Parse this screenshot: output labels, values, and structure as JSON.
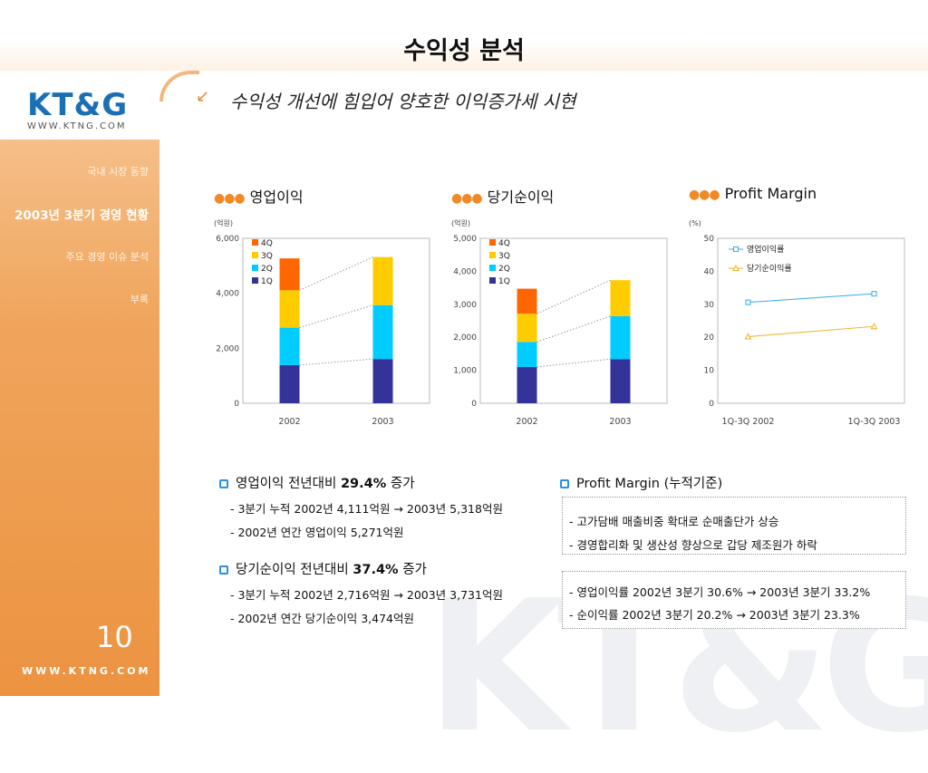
{
  "page": {
    "title": "수익성 분석",
    "subtitle": "수익성 개선에 힘입어 양호한 이익증가세 시현",
    "page_number": "10"
  },
  "brand": {
    "logo": "KT&G",
    "url": "WWW.KTNG.COM",
    "bottom_url": "WWW.KTNG.COM",
    "accent": "#f08a25"
  },
  "nav": {
    "items": [
      "국내 시장 동향",
      "2003년 3분기 경영 현황",
      "주요 경영 이슈 분석",
      "부록"
    ],
    "active_index": 1
  },
  "chart_headers": [
    "영업이익",
    "당기순이익",
    "Profit Margin"
  ],
  "chart_data": [
    {
      "type": "bar",
      "stacked": true,
      "title": "영업이익",
      "unit": "(억원)",
      "categories": [
        "2002",
        "2003"
      ],
      "series": [
        {
          "name": "1Q",
          "values": [
            1390,
            1610
          ],
          "color": "#333399"
        },
        {
          "name": "2Q",
          "values": [
            1360,
            1960
          ],
          "color": "#00ccff"
        },
        {
          "name": "3Q",
          "values": [
            1361,
            1748
          ],
          "color": "#ffcc00"
        },
        {
          "name": "4Q",
          "values": [
            1160,
            0
          ],
          "color": "#ff6600"
        }
      ],
      "ylim": [
        0,
        6000
      ],
      "yticks": [
        "0",
        "2,000",
        "4,000",
        "6,000"
      ],
      "ytick_values": [
        0,
        2000,
        4000,
        6000
      ]
    },
    {
      "type": "bar",
      "stacked": true,
      "title": "당기순이익",
      "unit": "(억원)",
      "categories": [
        "2002",
        "2003"
      ],
      "series": [
        {
          "name": "1Q",
          "values": [
            1100,
            1340
          ],
          "color": "#333399"
        },
        {
          "name": "2Q",
          "values": [
            760,
            1300
          ],
          "color": "#00ccff"
        },
        {
          "name": "3Q",
          "values": [
            856,
            1091
          ],
          "color": "#ffcc00"
        },
        {
          "name": "4Q",
          "values": [
            758,
            0
          ],
          "color": "#ff6600"
        }
      ],
      "ylim": [
        0,
        5000
      ],
      "yticks": [
        "0",
        "1,000",
        "2,000",
        "3,000",
        "4,000",
        "5,000"
      ],
      "ytick_values": [
        0,
        1000,
        2000,
        3000,
        4000,
        5000
      ]
    },
    {
      "type": "line",
      "title": "Profit Margin",
      "unit": "(%)",
      "categories": [
        "1Q-3Q 2002",
        "1Q-3Q 2003"
      ],
      "series": [
        {
          "name": "영업이익률",
          "values": [
            30.6,
            33.2
          ],
          "color": "#33aaee"
        },
        {
          "name": "당기순이익률",
          "values": [
            20.2,
            23.3
          ],
          "color": "#f2b020"
        }
      ],
      "ylim": [
        0,
        50
      ],
      "yticks": [
        "0",
        "10",
        "20",
        "30",
        "40",
        "50"
      ],
      "ytick_values": [
        0,
        10,
        20,
        30,
        40,
        50
      ]
    }
  ],
  "notes_left": {
    "op": {
      "title_a": "영업이익 전년대비 ",
      "title_b": "29.4%",
      "title_c": " 증가",
      "line1": "- 3분기 누적 2002년 4,111억원 → 2003년 5,318억원",
      "line2": "- 2002년 연간 영업이익 5,271억원"
    },
    "net": {
      "title_a": "당기순이익 전년대비 ",
      "title_b": "37.4%",
      "title_c": " 증가",
      "line1": "- 3분기 누적 2002년 2,716억원 → 2003년 3,731억원",
      "line2": "- 2002년 연간 당기순이익 3,474억원"
    }
  },
  "notes_right": {
    "title": "Profit Margin (누적기준)",
    "box1": [
      "- 고가담배 매출비중 확대로 순매출단가 상승",
      "- 경영합리화 및 생산성 향상으로 갑당 제조원가 하락"
    ],
    "box2": [
      "- 영업이익률 2002년 3분기 30.6% → 2003년 3분기 33.2%",
      "- 순이익률 2002년 3분기 20.2% → 2003년 3분기 23.3%"
    ]
  }
}
